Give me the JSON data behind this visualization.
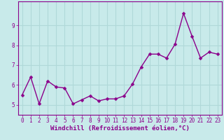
{
  "x": [
    0,
    1,
    2,
    3,
    4,
    5,
    6,
    7,
    8,
    9,
    10,
    11,
    12,
    13,
    14,
    15,
    16,
    17,
    18,
    19,
    20,
    21,
    22,
    23
  ],
  "y": [
    5.5,
    6.4,
    5.05,
    6.2,
    5.9,
    5.85,
    5.05,
    5.25,
    5.45,
    5.2,
    5.3,
    5.3,
    5.45,
    6.05,
    6.9,
    7.55,
    7.55,
    7.35,
    8.05,
    9.6,
    8.45,
    7.35,
    7.65,
    7.55
  ],
  "line_color": "#8B008B",
  "marker_color": "#8B008B",
  "bg_color": "#c8eaea",
  "grid_color": "#b0d8d8",
  "xlabel": "Windchill (Refroidissement éolien,°C)",
  "ylim_min": 4.5,
  "ylim_max": 10.2,
  "xlim_min": -0.5,
  "xlim_max": 23.5,
  "yticks": [
    5,
    6,
    7,
    8,
    9
  ],
  "xticks": [
    0,
    1,
    2,
    3,
    4,
    5,
    6,
    7,
    8,
    9,
    10,
    11,
    12,
    13,
    14,
    15,
    16,
    17,
    18,
    19,
    20,
    21,
    22,
    23
  ],
  "tick_fontsize": 5.5,
  "xlabel_fontsize": 6.5,
  "line_width": 1.0,
  "marker_size": 2.5
}
